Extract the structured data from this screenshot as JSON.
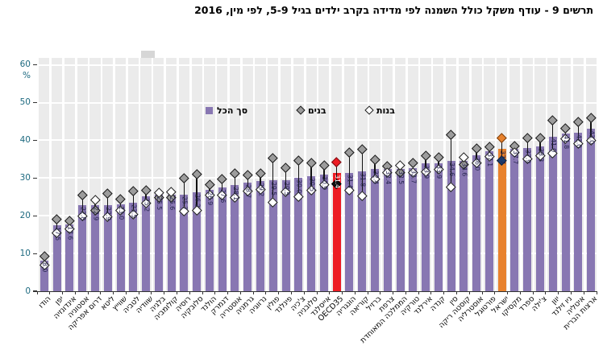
{
  "title": "תרשים 9 - עודף משקל כולל השמנה לפי מדידה בקרב ילדים בגיל 5-9, לפי מין, 2016",
  "legend": {
    "total": "סך הכל",
    "boys": "בנים",
    "girls": "בנות"
  },
  "y_axis": {
    "unit": "%",
    "ticks": [
      0,
      10,
      20,
      30,
      40,
      50,
      60
    ],
    "max": 60
  },
  "colors": {
    "bar": "#8877B2",
    "oecd_bar": "#ED1C24",
    "israel_bar": "#E8822D",
    "boys_marker_fill": "#9C9C9C",
    "girls_marker_fill": "#FFFFFF",
    "marker_border": "#1a1a1a",
    "oecd_boys_marker": "#ED1C24",
    "oecd_girls_marker": "#111111",
    "israel_boys_marker": "#E8822D",
    "israel_girls_marker": "#1D3C6E",
    "value_label": "#26254F",
    "value_label_on_red": "#FFFFFF",
    "panel_bg": "#EBEBEB",
    "grid": "#FFFFFF",
    "axis_text": "#1E6A80"
  },
  "chart_data": {
    "type": "bar",
    "title": "תרשים 9 - עודף משקל כולל השמנה לפי מדידה בקרב ילדים בגיל 5-9, לפי מין, 2016",
    "xlabel": "",
    "ylabel": "%",
    "ylim": [
      0,
      60
    ],
    "grid": true,
    "legend_position": "top-center-inside",
    "categories": [
      "הודו",
      "יפן",
      "אינדונזיה",
      "אסטוניה",
      "דרום אפריקה",
      "ליטא",
      "שווייץ",
      "לטביה",
      "שוודיה",
      "בלגיה",
      "קולומביה",
      "רוסיה",
      "סלובקיה",
      "הולנד",
      "דנמרק",
      "אוסטריה",
      "גרמניה",
      "נרווגיה",
      "פולין",
      "פינלנד",
      "צ'כיה",
      "סלובניה",
      "אייסלנד",
      "OECD35",
      "הונגריה",
      "קוריאה",
      "ברזיל",
      "צרפת",
      "הממלכה המאוחדת",
      "טורקיה",
      "אירלנד",
      "קנדה",
      "סין",
      "קוסטה ריקה",
      "אוסטרליה",
      "פורטוגל",
      "ישראל",
      "מקסיקו",
      "ספרד",
      "צ'ילה",
      "יוון",
      "ניו זילנד",
      "איטליה",
      "ארצות הברית"
    ],
    "series": [
      {
        "name": "סך הכל",
        "values": [
          8.0,
          17.5,
          17.6,
          22.8,
          22.9,
          22.9,
          23.0,
          23.5,
          25.2,
          25.5,
          25.6,
          25.7,
          26.2,
          26.9,
          27.6,
          28.1,
          28.7,
          29.2,
          29.5,
          29.5,
          30.0,
          30.5,
          30.9,
          31.4,
          31.4,
          31.8,
          32.4,
          32.4,
          32.5,
          32.7,
          33.9,
          33.9,
          34.6,
          34.6,
          36.0,
          37.1,
          37.7,
          37.7,
          37.9,
          38.3,
          41.0,
          41.8,
          42.0,
          43.0
        ]
      },
      {
        "name": "בנים",
        "values": [
          9.4,
          19.1,
          18.6,
          25.6,
          21.4,
          25.9,
          24.4,
          26.6,
          26.8,
          24.8,
          24.9,
          30.0,
          31.0,
          28.2,
          29.7,
          31.2,
          30.8,
          31.2,
          35.3,
          32.7,
          34.8,
          34.1,
          33.4,
          34.2,
          36.8,
          37.6,
          35.0,
          33.3,
          31.5,
          34.0,
          36.0,
          35.5,
          41.5,
          33.6,
          38.0,
          38.4,
          40.7,
          38.5,
          40.7,
          40.7,
          45.3,
          43.2,
          44.9,
          46.0
        ]
      },
      {
        "name": "בנות",
        "values": [
          7.0,
          15.6,
          16.5,
          19.9,
          24.3,
          19.8,
          21.5,
          20.4,
          23.5,
          26.2,
          26.3,
          21.3,
          21.4,
          25.6,
          25.5,
          24.9,
          26.6,
          27.1,
          23.6,
          26.3,
          25.2,
          26.9,
          28.4,
          28.6,
          26.8,
          25.4,
          29.7,
          31.5,
          33.5,
          31.4,
          31.8,
          32.3,
          27.7,
          35.6,
          34.0,
          35.8,
          34.7,
          36.8,
          35.1,
          35.9,
          36.7,
          40.4,
          39.1,
          40.0
        ]
      }
    ],
    "highlights": {
      "oecd_index": 23,
      "israel_index": 36
    }
  }
}
